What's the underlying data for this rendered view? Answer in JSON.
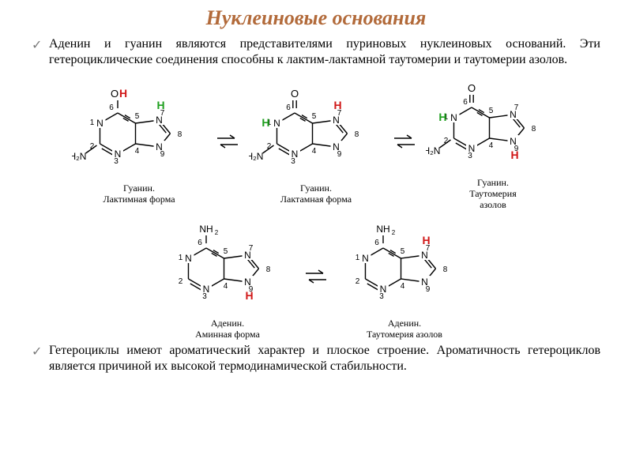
{
  "colors": {
    "title": "#b26a3a",
    "text": "#000000",
    "bullet_check": "#7a7a7a",
    "stroke": "#000000",
    "h_green": "#1fa01f",
    "h_red": "#d01818",
    "atom_label": "#000000"
  },
  "fonts": {
    "title_size": 26,
    "body_size": 16,
    "caption_size": 12,
    "atom_label_size": 10,
    "h_label_size": 14
  },
  "title": "Нуклеиновые основания",
  "bullets": [
    "Аденин и гуанин являются представителями пуриновых нуклеиновых оснований. Эти гетероциклические соединения способны к лактим-лактамной таутомерии и таутомерии азолов.",
    "Гетероциклы имеют ароматический характер и плоское строение. Ароматичность гетероциклов является причиной их высокой термодинамической стабильности."
  ],
  "molecules": {
    "guanine_lactim": {
      "caption": "Гуанин.\nЛактимная форма",
      "top_group": "OH",
      "top_h_color": "h_red",
      "n1_h": false,
      "n7_h": true,
      "n7_h_color": "h_green",
      "n9_h": false,
      "c2_sub": "H₂N",
      "ring_numbers": [
        "1",
        "2",
        "3",
        "4",
        "5",
        "6",
        "7",
        "8",
        "9"
      ]
    },
    "guanine_lactam": {
      "caption": "Гуанин.\nЛактамная форма",
      "top_group": "O",
      "top_double": true,
      "n1_h": true,
      "n1_h_color": "h_green",
      "n7_h": true,
      "n7_h_color": "h_red",
      "n9_h": false,
      "c2_sub": "H₂N",
      "ring_numbers": [
        "1",
        "2",
        "3",
        "4",
        "5",
        "6",
        "7",
        "8",
        "9"
      ]
    },
    "guanine_azole": {
      "caption": "Гуанин.\nТаутомерия\nазолов",
      "top_group": "O",
      "top_double": true,
      "n1_h": true,
      "n1_h_color": "h_green",
      "n7_h": false,
      "n9_h": true,
      "n9_h_color": "h_red",
      "c2_sub": "H₂N",
      "ring_numbers": [
        "1",
        "2",
        "3",
        "4",
        "5",
        "6",
        "7",
        "8",
        "9"
      ]
    },
    "adenine_amine": {
      "caption": "Аденин.\nАминная форма",
      "top_group": "NH₂",
      "n1_h": false,
      "n7_h": false,
      "n9_h": true,
      "n9_h_color": "h_red",
      "c2_sub": "",
      "ring_numbers": [
        "1",
        "2",
        "3",
        "4",
        "5",
        "6",
        "7",
        "8",
        "9"
      ]
    },
    "adenine_azole": {
      "caption": "Аденин.\nТаутомерия азолов",
      "top_group": "NH₂",
      "n1_h": false,
      "n7_h": true,
      "n7_h_color": "h_red",
      "n9_h": false,
      "c2_sub": "",
      "ring_numbers": [
        "1",
        "2",
        "3",
        "4",
        "5",
        "6",
        "7",
        "8",
        "9"
      ]
    }
  },
  "equilibrium_label": "⇌"
}
